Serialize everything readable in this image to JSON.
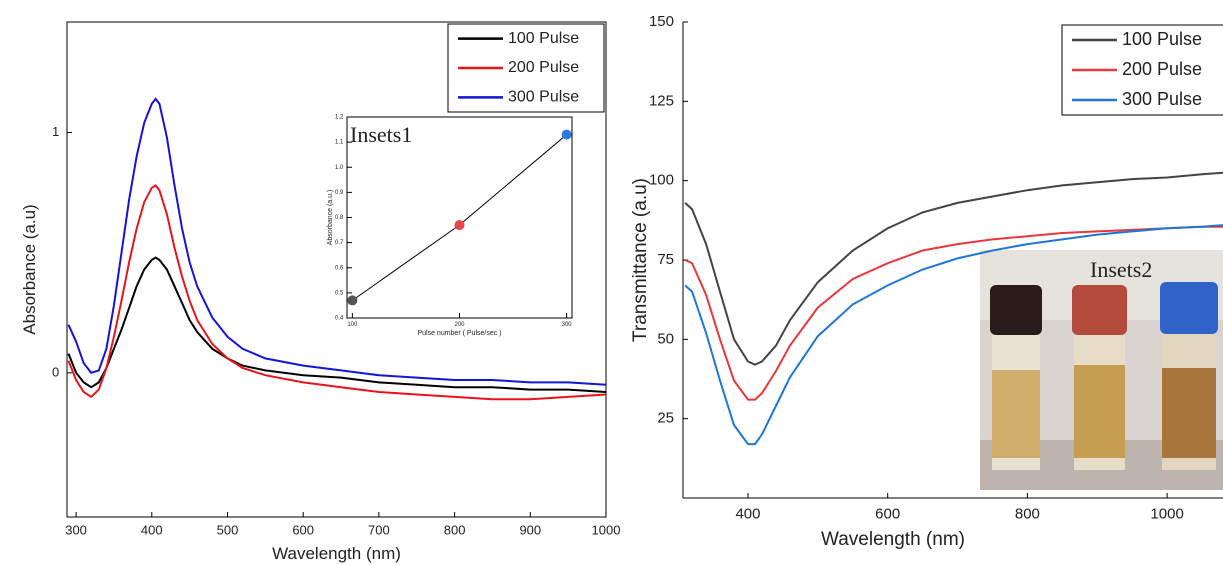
{
  "chart_data": [
    {
      "type": "line",
      "x_label": "Wavelength (nm)",
      "y_label": "Absorbance (a.u)",
      "x": [
        290,
        300,
        310,
        320,
        330,
        340,
        350,
        360,
        370,
        380,
        390,
        400,
        405,
        410,
        420,
        430,
        440,
        450,
        460,
        480,
        500,
        520,
        550,
        600,
        650,
        700,
        750,
        800,
        850,
        900,
        950,
        1000
      ],
      "series": [
        {
          "name": "100 Pulse",
          "color": "#000000",
          "values": [
            0.08,
            0.0,
            -0.04,
            -0.06,
            -0.04,
            0.02,
            0.1,
            0.18,
            0.27,
            0.36,
            0.43,
            0.47,
            0.48,
            0.47,
            0.43,
            0.36,
            0.29,
            0.22,
            0.17,
            0.1,
            0.06,
            0.03,
            0.01,
            -0.01,
            -0.02,
            -0.04,
            -0.05,
            -0.06,
            -0.06,
            -0.07,
            -0.07,
            -0.08
          ]
        },
        {
          "name": "200 Pulse",
          "color": "#e8141b",
          "values": [
            0.05,
            -0.03,
            -0.08,
            -0.1,
            -0.07,
            0.02,
            0.15,
            0.3,
            0.46,
            0.6,
            0.71,
            0.77,
            0.78,
            0.76,
            0.66,
            0.52,
            0.4,
            0.3,
            0.22,
            0.12,
            0.06,
            0.02,
            -0.01,
            -0.04,
            -0.06,
            -0.08,
            -0.09,
            -0.1,
            -0.11,
            -0.11,
            -0.1,
            -0.09
          ]
        },
        {
          "name": "300 Pulse",
          "color": "#1414d8",
          "values": [
            0.2,
            0.13,
            0.04,
            0.0,
            0.01,
            0.1,
            0.28,
            0.5,
            0.72,
            0.9,
            1.04,
            1.12,
            1.14,
            1.12,
            0.98,
            0.78,
            0.6,
            0.46,
            0.36,
            0.23,
            0.15,
            0.1,
            0.06,
            0.03,
            0.01,
            -0.01,
            -0.02,
            -0.03,
            -0.03,
            -0.04,
            -0.04,
            -0.05
          ]
        }
      ],
      "xlim": [
        288,
        1000
      ],
      "xticks": [
        300,
        400,
        500,
        600,
        700,
        800,
        900,
        1000
      ],
      "ylim": [
        -0.6,
        1.46
      ],
      "yticks": [
        0,
        1
      ],
      "legend": "upper right"
    },
    {
      "type": "line",
      "title": "Insets1",
      "x_label": "Pulse number ( Pulse/sec )",
      "y_label": "Absorbance (a.u.)",
      "x": [
        100,
        200,
        300
      ],
      "series": [
        {
          "color": "#000000",
          "values": [
            0.47,
            0.77,
            1.13
          ]
        }
      ],
      "point_colors": [
        "#555555",
        "#e8474a",
        "#2f7ad8"
      ],
      "markers": true,
      "xlim": [
        95,
        305
      ],
      "xticks": [
        100,
        200,
        300
      ],
      "ylim": [
        0.4,
        1.2
      ],
      "yticks": [
        0.4,
        0.5,
        0.6,
        0.7,
        0.8,
        0.9,
        {
          "value": 1,
          "label": "1.0"
        },
        1.1,
        1.2
      ]
    },
    {
      "type": "line",
      "x_label": "Wavelength (nm)",
      "y_label": "Transmittance (a.u)",
      "annotations": [
        "Insets2"
      ],
      "x": [
        310,
        320,
        340,
        360,
        380,
        400,
        410,
        420,
        440,
        460,
        500,
        550,
        600,
        650,
        700,
        750,
        800,
        850,
        900,
        950,
        1000,
        1050,
        1080
      ],
      "series": [
        {
          "name": "100 Pulse",
          "color": "#444444",
          "values": [
            93,
            91,
            80,
            65,
            50,
            43,
            42,
            43,
            48,
            56,
            68,
            78,
            85,
            90,
            93,
            95,
            97,
            98.5,
            99.5,
            100.5,
            101,
            102,
            102.5
          ]
        },
        {
          "name": "200 Pulse",
          "color": "#e8383d",
          "values": [
            75,
            74,
            64,
            50,
            37,
            31,
            31,
            33,
            40,
            48,
            60,
            69,
            74,
            78,
            80,
            81.5,
            82.5,
            83.5,
            84,
            84.5,
            85,
            85.5,
            85.5
          ]
        },
        {
          "name": "300 Pulse",
          "color": "#1f77d4",
          "values": [
            67,
            65,
            52,
            37,
            23,
            17,
            17,
            20,
            29,
            38,
            51,
            61,
            67,
            72,
            75.5,
            78,
            80,
            81.5,
            83,
            84,
            85,
            85.5,
            86
          ]
        }
      ],
      "xlim": [
        307,
        1080
      ],
      "xticks": [
        400,
        600,
        800,
        1000
      ],
      "ylim": [
        0,
        150
      ],
      "yticks": [
        25,
        50,
        75,
        100,
        125,
        150
      ],
      "legend": "upper right"
    }
  ]
}
